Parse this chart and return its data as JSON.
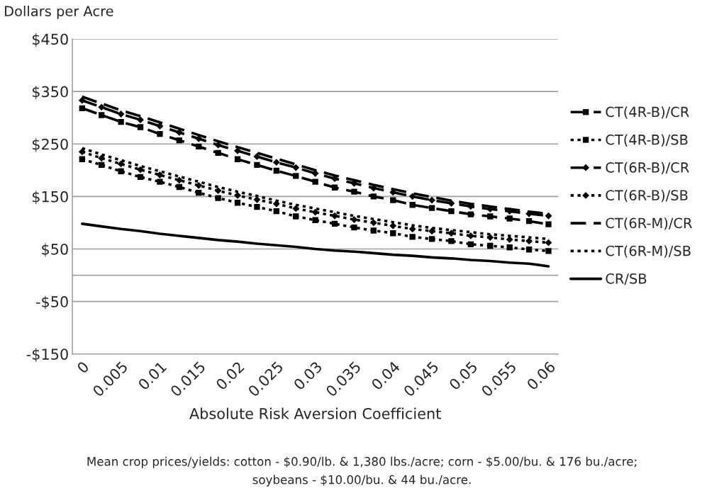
{
  "chart_data": {
    "type": "line",
    "ylabel": "Dollars per Acre",
    "xlabel": "Absolute Risk Aversion Coefficient",
    "categories": [
      "0",
      null,
      "0.005",
      null,
      "0.01",
      null,
      "0.015",
      null,
      "0.02",
      null,
      "0.025",
      null,
      "0.03",
      null,
      "0.035",
      null,
      "0.04",
      null,
      "0.045",
      null,
      "0.05",
      null,
      "0.055",
      null,
      "0.06"
    ],
    "ylim": [
      -150,
      450
    ],
    "yticks": [
      {
        "value": -150,
        "label": "-$150"
      },
      {
        "value": -50,
        "label": "-$50"
      },
      {
        "value": 50,
        "label": "$50"
      },
      {
        "value": 150,
        "label": "$150"
      },
      {
        "value": 250,
        "label": "$250"
      },
      {
        "value": 350,
        "label": "$350"
      },
      {
        "value": 450,
        "label": "$450"
      }
    ],
    "grid": "y",
    "legend": "right",
    "series": [
      {
        "name": "CT(4R-B)/CR",
        "color": "#000000",
        "marker": "square",
        "line_style": "dashed",
        "values": [
          318,
          305,
          292,
          282,
          269,
          257,
          245,
          233,
          221,
          210,
          199,
          189,
          178,
          167,
          159,
          150,
          143,
          134,
          128,
          122,
          116,
          112,
          108,
          103,
          97
        ]
      },
      {
        "name": "CT(4R-B)/SB",
        "color": "#000000",
        "marker": "square",
        "line_style": "dotted",
        "values": [
          221,
          210,
          198,
          187,
          178,
          168,
          157,
          147,
          138,
          130,
          122,
          112,
          105,
          98,
          91,
          85,
          80,
          73,
          69,
          65,
          59,
          56,
          53,
          49,
          46
        ]
      },
      {
        "name": "CT(6R-B)/CR",
        "color": "#000000",
        "marker": "diamond",
        "line_style": "dashed",
        "values": [
          333,
          320,
          307,
          296,
          284,
          272,
          260,
          248,
          237,
          226,
          215,
          205,
          194,
          184,
          175,
          166,
          158,
          150,
          143,
          137,
          131,
          126,
          122,
          117,
          113
        ]
      },
      {
        "name": "CT(6R-B)/SB",
        "color": "#000000",
        "marker": "diamond",
        "line_style": "dotted",
        "values": [
          235,
          223,
          212,
          201,
          191,
          181,
          171,
          161,
          152,
          144,
          136,
          127,
          120,
          113,
          106,
          100,
          94,
          88,
          84,
          80,
          75,
          72,
          68,
          65,
          62
        ]
      },
      {
        "name": "CT(6R-M)/CR",
        "color": "#000000",
        "marker": "none",
        "line_style": "dashed",
        "values": [
          340,
          327,
          314,
          303,
          291,
          279,
          267,
          255,
          244,
          233,
          222,
          211,
          200,
          190,
          181,
          172,
          164,
          156,
          149,
          142,
          136,
          131,
          126,
          121,
          117
        ]
      },
      {
        "name": "CT(6R-M)/SB",
        "color": "#000000",
        "marker": "none",
        "line_style": "dotted",
        "values": [
          242,
          230,
          219,
          208,
          198,
          188,
          178,
          168,
          159,
          151,
          142,
          134,
          127,
          120,
          113,
          107,
          101,
          95,
          90,
          86,
          82,
          78,
          75,
          72,
          69
        ]
      },
      {
        "name": "CR/SB",
        "color": "#000000",
        "marker": "none",
        "line_style": "solid",
        "values": [
          98,
          93,
          88,
          84,
          79,
          75,
          71,
          67,
          64,
          60,
          57,
          54,
          50,
          47,
          45,
          42,
          39,
          37,
          34,
          32,
          29,
          27,
          24,
          22,
          17
        ]
      }
    ],
    "annotations": [
      "Mean crop prices/yields: cotton - $0.90/lb. & 1,380 lbs./acre; corn - $5.00/bu. & 176 bu./acre;",
      "soybeans - $10.00/bu. & 44 bu./acre."
    ]
  }
}
